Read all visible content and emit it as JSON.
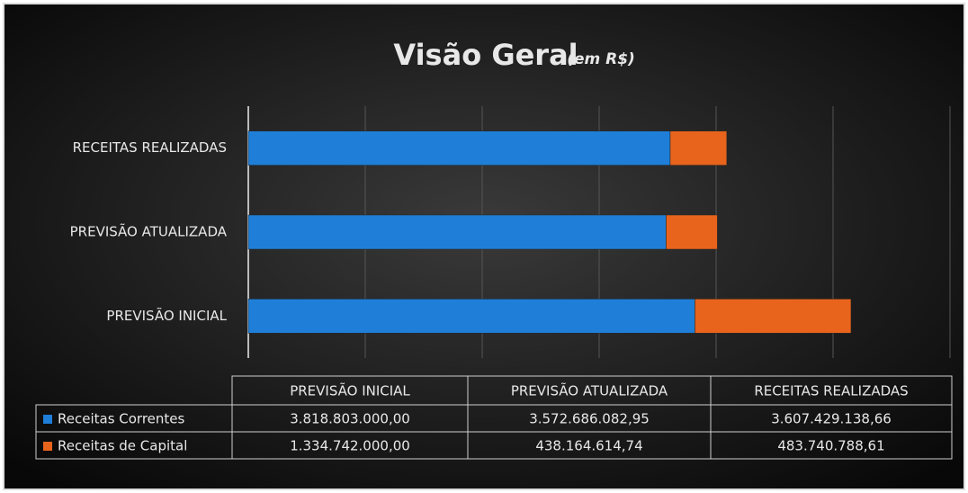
{
  "chart_data": {
    "type": "bar",
    "orientation": "horizontal",
    "stacked": true,
    "title": "Visão Geral",
    "subtitle": "(em R$)",
    "categories": [
      "PREVISÃO INICIAL",
      "PREVISÃO ATUALIZADA",
      "RECEITAS REALIZADAS"
    ],
    "series": [
      {
        "name": "Receitas Correntes",
        "color": "#1f7fd8",
        "values": [
          3818803000.0,
          3572686082.95,
          3607429138.66
        ],
        "value_labels": [
          "3.818.803.000,00",
          "3.572.686.082,95",
          "3.607.429.138,66"
        ]
      },
      {
        "name": "Receitas de Capital",
        "color": "#e8641c",
        "values": [
          1334742000.0,
          438164614.74,
          483740788.61
        ],
        "value_labels": [
          "1.334.742.000,00",
          "438.164.614,74",
          "483.740.788,61"
        ]
      }
    ],
    "xlim": [
      0,
      6000000000
    ],
    "xticks": [
      0,
      1000000000,
      2000000000,
      3000000000,
      4000000000,
      5000000000,
      6000000000
    ],
    "grid": true
  }
}
